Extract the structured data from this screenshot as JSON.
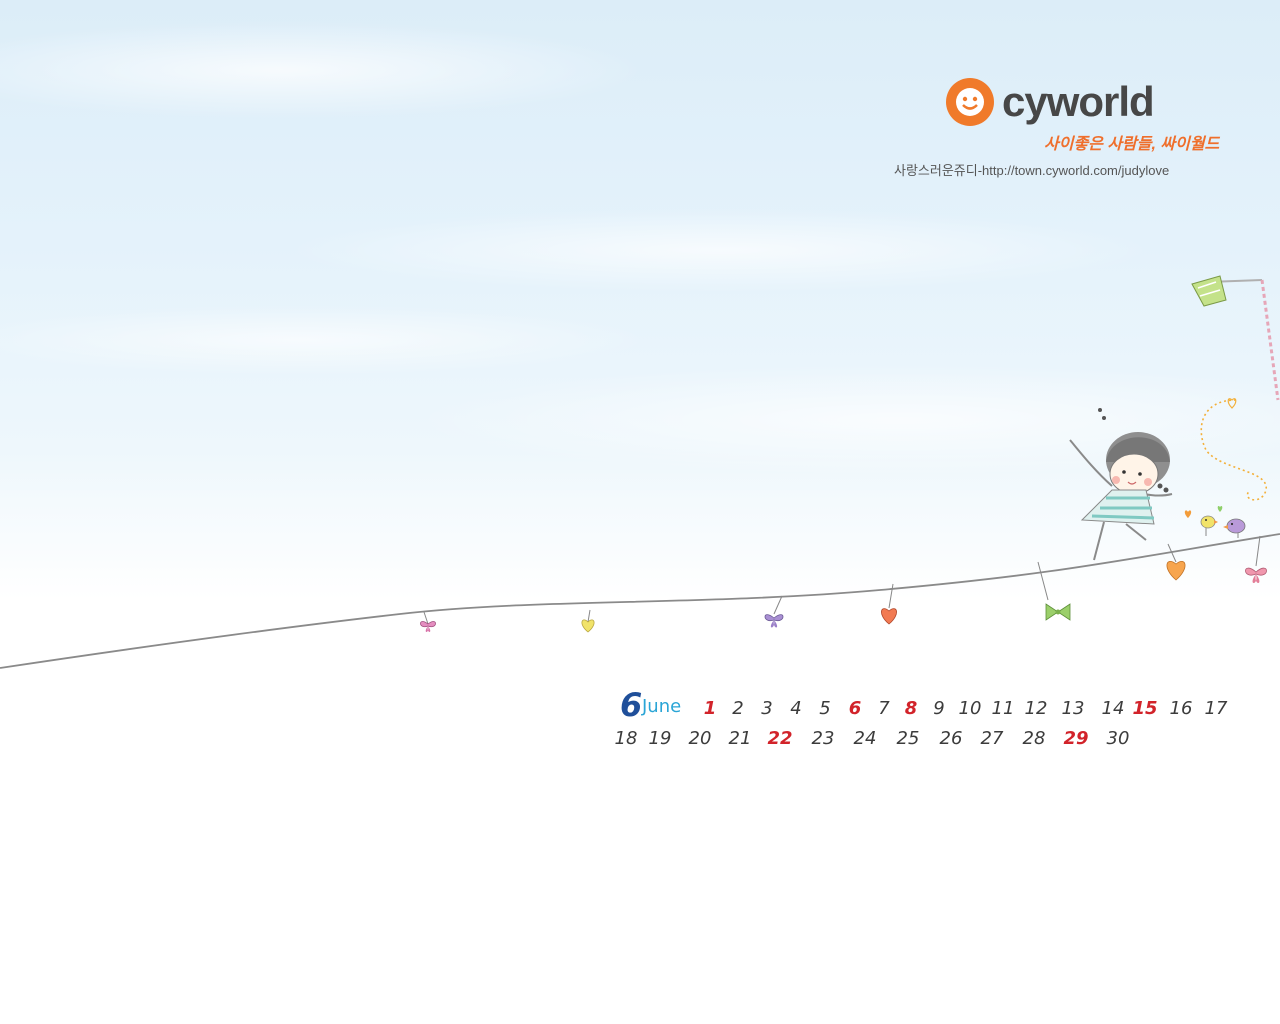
{
  "brand": {
    "name": "cyworld",
    "slogan": "사이좋은 사람들, 싸이월드",
    "accent_color": "#f07a2a"
  },
  "credit": "사랑스러운쥬디-http://town.cyworld.com/judylove",
  "calendar": {
    "month_number": "6",
    "month_name": "June",
    "holiday_color": "#d2232a",
    "days": [
      {
        "d": "1",
        "red": true
      },
      {
        "d": "2"
      },
      {
        "d": "3"
      },
      {
        "d": "4"
      },
      {
        "d": "5"
      },
      {
        "d": "6",
        "red": true
      },
      {
        "d": "7"
      },
      {
        "d": "8",
        "red": true
      },
      {
        "d": "9"
      },
      {
        "d": "10"
      },
      {
        "d": "11"
      },
      {
        "d": "12"
      },
      {
        "d": "13"
      },
      {
        "d": "14"
      },
      {
        "d": "15",
        "red": true
      },
      {
        "d": "16"
      },
      {
        "d": "17"
      },
      {
        "d": "18"
      },
      {
        "d": "19"
      },
      {
        "d": "20"
      },
      {
        "d": "21"
      },
      {
        "d": "22",
        "red": true
      },
      {
        "d": "23"
      },
      {
        "d": "24"
      },
      {
        "d": "25"
      },
      {
        "d": "26"
      },
      {
        "d": "27"
      },
      {
        "d": "28"
      },
      {
        "d": "29",
        "red": true
      },
      {
        "d": "30"
      }
    ]
  },
  "illustration": {
    "subject": "girl-walking-on-line",
    "items": [
      "heart-icon",
      "butterfly-icon",
      "bow-icon",
      "bird-icon",
      "kite-icon"
    ]
  }
}
